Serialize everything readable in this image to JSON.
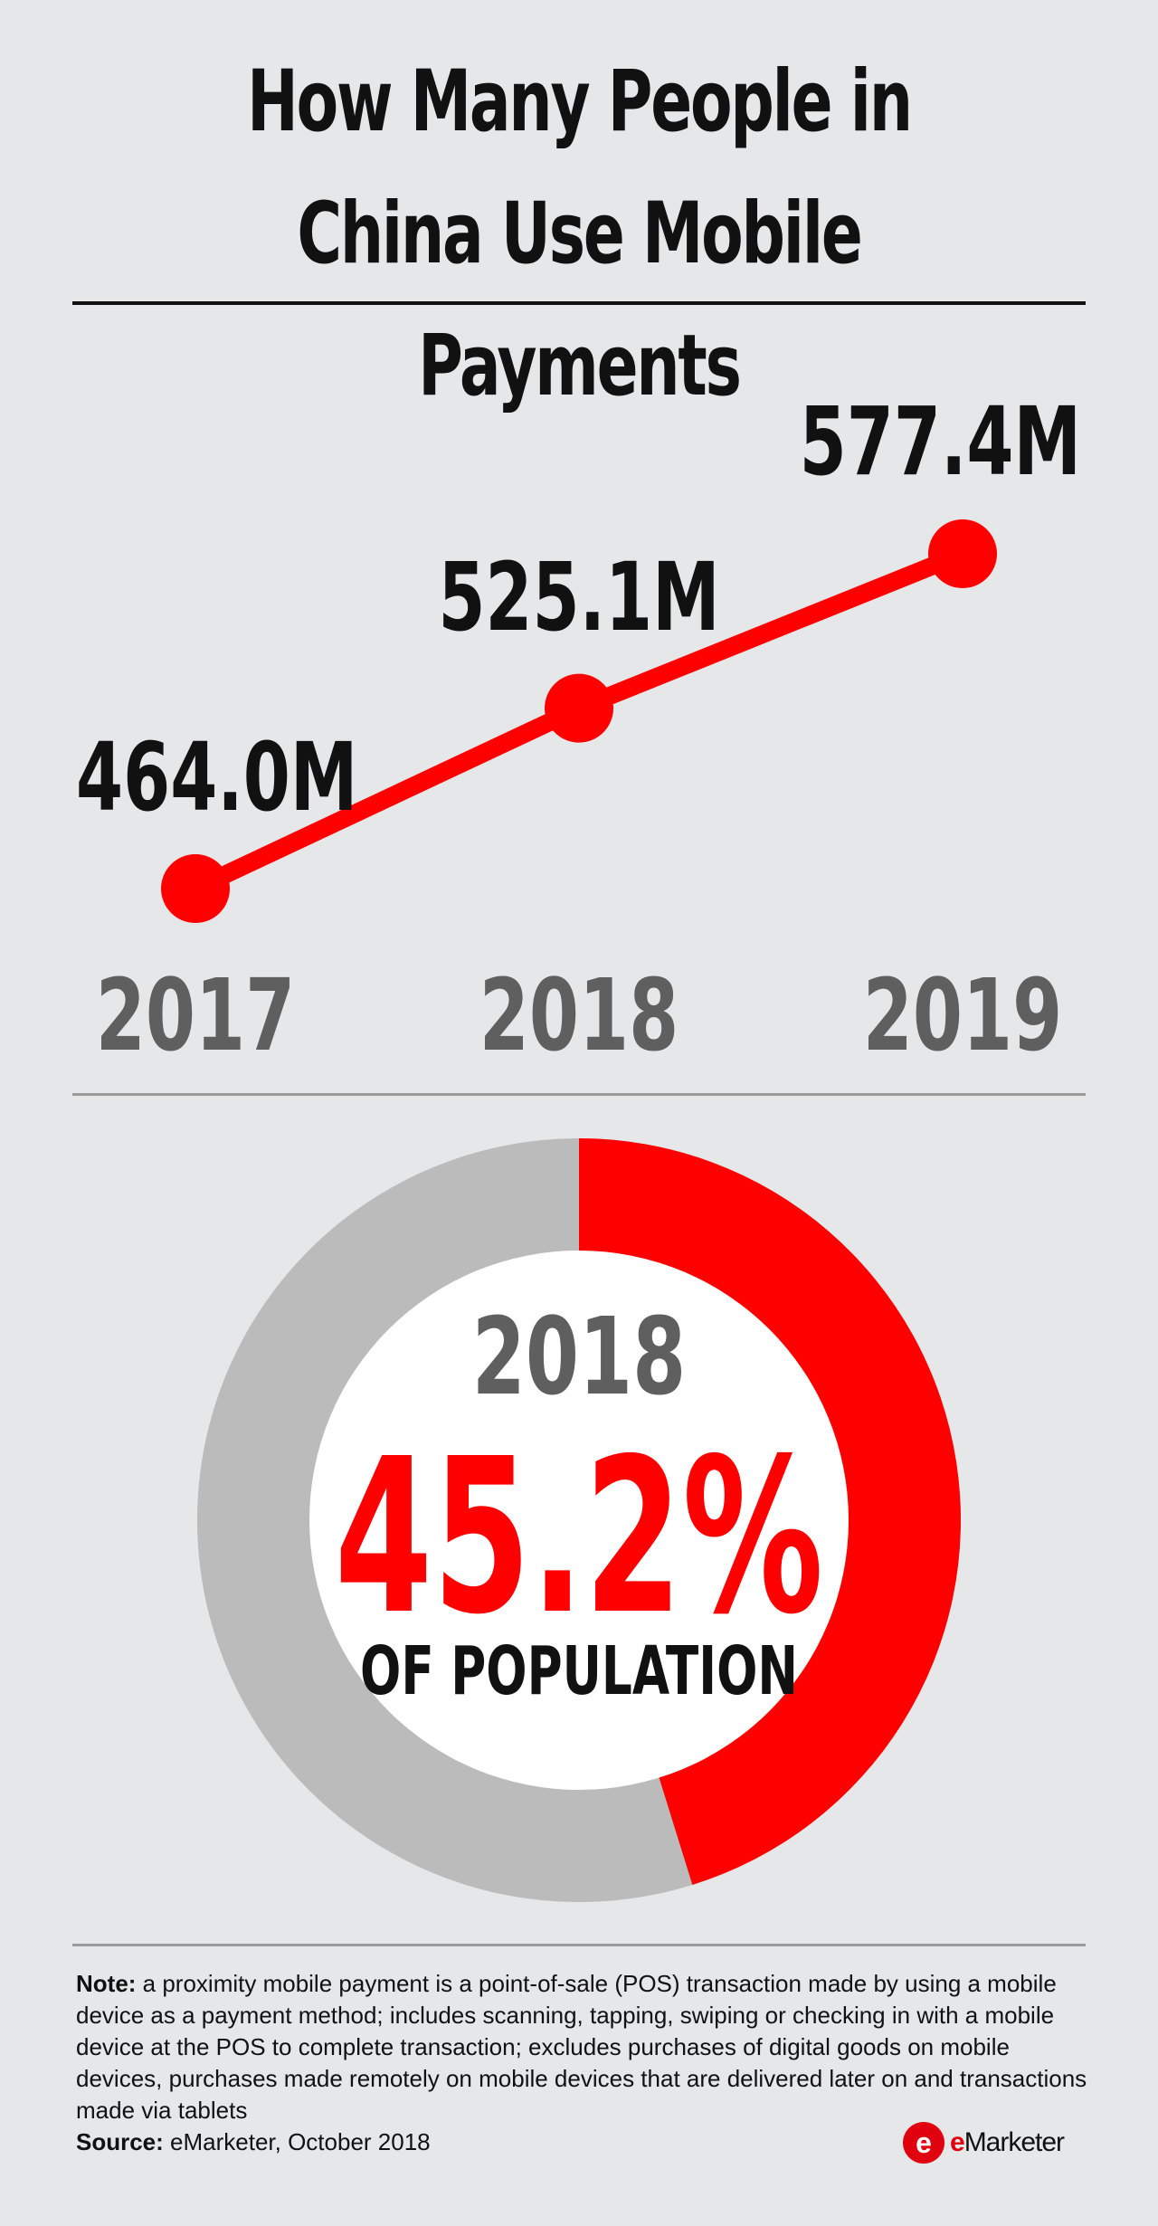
{
  "title": {
    "line1": "How Many People in",
    "line2": "China Use Mobile Payments"
  },
  "colors": {
    "accent": "#ff0000",
    "gray": "#bbbbbb",
    "year_text": "#5f5f5f",
    "background": "#e6e7e9"
  },
  "chart_data": [
    {
      "type": "line",
      "x": [
        "2017",
        "2018",
        "2019"
      ],
      "series": [
        {
          "values": [
            464.0,
            525.1,
            577.4
          ]
        }
      ],
      "data_labels": [
        "464.0M",
        "525.1M",
        "577.4M"
      ],
      "ylim": [
        464.0,
        577.4
      ],
      "grid": false
    },
    {
      "type": "pie",
      "year": "2018",
      "value_percent": 45.2,
      "value_label": "45.2%",
      "caption": "OF POPULATION"
    }
  ],
  "note": {
    "label": "Note:",
    "text": " a proximity mobile payment is a point-of-sale (POS) transaction made by using a mobile device as a payment method; includes scanning, tapping, swiping or checking in with a mobile device at the POS to complete transaction; excludes purchases of digital goods on mobile devices, purchases made remotely on mobile devices that are delivered later on and transactions made via tablets"
  },
  "source": {
    "label": "Source:",
    "text": " eMarketer, October 2018"
  },
  "logo": {
    "badge": "e",
    "prefix": "e",
    "rest": "Marketer",
    "icon": "emarketer-logo-icon"
  }
}
